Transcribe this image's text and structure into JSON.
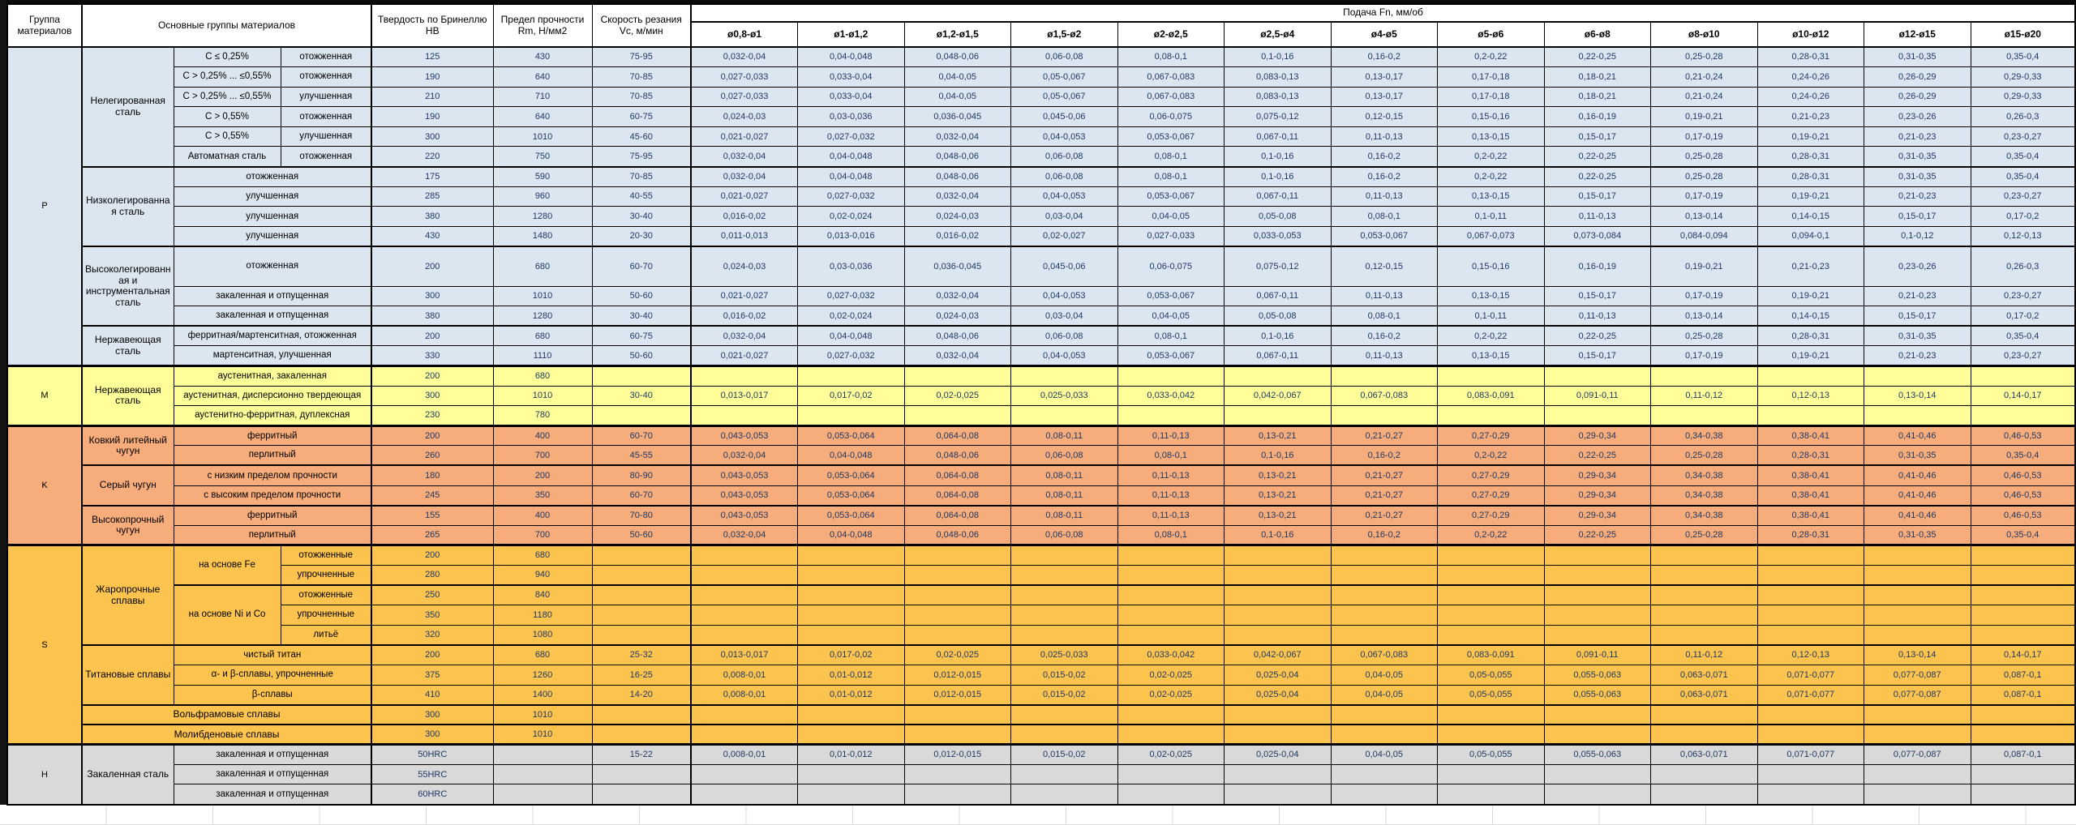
{
  "header": {
    "col_group": "Группа материалов",
    "col_materials": "Основные группы материалов",
    "col_hardness": "Твердость по Бринеллю HB",
    "col_strength": "Предел прочности Rm, Н/мм2",
    "col_speed": "Скорость резания Vc, м/мин",
    "feed_title": "Подача Fn, мм/об",
    "diameters": [
      "ø0,8-ø1",
      "ø1-ø1,2",
      "ø1,2-ø1,5",
      "ø1,5-ø2",
      "ø2-ø2,5",
      "ø2,5-ø4",
      "ø4-ø5",
      "ø5-ø6",
      "ø6-ø8",
      "ø8-ø10",
      "ø10-ø12",
      "ø12-ø15",
      "ø15-ø20"
    ]
  },
  "colors": {
    "p": "#DCE6F1",
    "m": "#FFFF99",
    "k": "#F6AC7B",
    "s": "#FCC44F",
    "h": "#D9D9D9",
    "numcol": "#1F3864"
  },
  "feed_sets": {
    "A": [
      "0,032-0,04",
      "0,04-0,048",
      "0,048-0,06",
      "0,06-0,08",
      "0,08-0,1",
      "0,1-0,16",
      "0,16-0,2",
      "0,2-0,22",
      "0,22-0,25",
      "0,25-0,28",
      "0,28-0,31",
      "0,31-0,35",
      "0,35-0,4"
    ],
    "B": [
      "0,027-0,033",
      "0,033-0,04",
      "0,04-0,05",
      "0,05-0,067",
      "0,067-0,083",
      "0,083-0,13",
      "0,13-0,17",
      "0,17-0,18",
      "0,18-0,21",
      "0,21-0,24",
      "0,24-0,26",
      "0,26-0,29",
      "0,29-0,33"
    ],
    "C": [
      "0,024-0,03",
      "0,03-0,036",
      "0,036-0,045",
      "0,045-0,06",
      "0,06-0,075",
      "0,075-0,12",
      "0,12-0,15",
      "0,15-0,16",
      "0,16-0,19",
      "0,19-0,21",
      "0,21-0,23",
      "0,23-0,26",
      "0,26-0,3"
    ],
    "D": [
      "0,021-0,027",
      "0,027-0,032",
      "0,032-0,04",
      "0,04-0,053",
      "0,053-0,067",
      "0,067-0,11",
      "0,11-0,13",
      "0,13-0,15",
      "0,15-0,17",
      "0,17-0,19",
      "0,19-0,21",
      "0,21-0,23",
      "0,23-0,27"
    ],
    "E": [
      "0,016-0,02",
      "0,02-0,024",
      "0,024-0,03",
      "0,03-0,04",
      "0,04-0,05",
      "0,05-0,08",
      "0,08-0,1",
      "0,1-0,11",
      "0,11-0,13",
      "0,13-0,14",
      "0,14-0,15",
      "0,15-0,17",
      "0,17-0,2"
    ],
    "F": [
      "0,011-0,013",
      "0,013-0,016",
      "0,016-0,02",
      "0,02-0,027",
      "0,027-0,033",
      "0,033-0,053",
      "0,053-0,067",
      "0,067-0,073",
      "0,073-0,084",
      "0,084-0,094",
      "0,094-0,1",
      "0,1-0,12",
      "0,12-0,13"
    ],
    "G": [
      "0,013-0,017",
      "0,017-0,02",
      "0,02-0,025",
      "0,025-0,033",
      "0,033-0,042",
      "0,042-0,067",
      "0,067-0,083",
      "0,083-0,091",
      "0,091-0,11",
      "0,11-0,12",
      "0,12-0,13",
      "0,13-0,14",
      "0,14-0,17"
    ],
    "H": [
      "0,043-0,053",
      "0,053-0,064",
      "0,064-0,08",
      "0,08-0,11",
      "0,11-0,13",
      "0,13-0,21",
      "0,21-0,27",
      "0,27-0,29",
      "0,29-0,34",
      "0,34-0,38",
      "0,38-0,41",
      "0,41-0,46",
      "0,46-0,53"
    ],
    "I": [
      "0,008-0,01",
      "0,01-0,012",
      "0,012-0,015",
      "0,015-0,02",
      "0,02-0,025",
      "0,025-0,04",
      "0,04-0,05",
      "0,05-0,055",
      "0,055-0,063",
      "0,063-0,071",
      "0,071-0,077",
      "0,077-0,087",
      "0,087-0,1"
    ]
  },
  "rows": [
    {
      "cls": "p",
      "group": [
        "P",
        15
      ],
      "fam": [
        "Нелегированная сталь",
        6
      ],
      "sub": [
        "C ≤ 0,25%",
        1
      ],
      "cond": "отожженная",
      "hb": "125",
      "rm": "430",
      "vc": "75-95",
      "feeds": "A"
    },
    {
      "sub": [
        "C > 0,25% ... ≤0,55%",
        1
      ],
      "cond": "отожженная",
      "hb": "190",
      "rm": "640",
      "vc": "70-85",
      "feeds": "B"
    },
    {
      "sub": [
        "C > 0,25% ... ≤0,55%",
        1
      ],
      "cond": "улучшенная",
      "hb": "210",
      "rm": "710",
      "vc": "70-85",
      "feeds": "B"
    },
    {
      "sub": [
        "C > 0,55%",
        1
      ],
      "cond": "отожженная",
      "hb": "190",
      "rm": "640",
      "vc": "60-75",
      "feeds": "C"
    },
    {
      "sub": [
        "C > 0,55%",
        1
      ],
      "cond": "улучшенная",
      "hb": "300",
      "rm": "1010",
      "vc": "45-60",
      "feeds": "D"
    },
    {
      "sub": [
        "Автоматная сталь",
        1
      ],
      "cond": "отожженная",
      "hb": "220",
      "rm": "750",
      "vc": "75-95",
      "feeds": "A"
    },
    {
      "bt": 2,
      "fam": [
        "Низколегированная сталь",
        4
      ],
      "sub": [
        "отожженная",
        2
      ],
      "hb": "175",
      "rm": "590",
      "vc": "70-85",
      "feeds": "A"
    },
    {
      "sub": [
        "улучшенная",
        2
      ],
      "hb": "285",
      "rm": "960",
      "vc": "40-55",
      "feeds": "D"
    },
    {
      "sub": [
        "улучшенная",
        2
      ],
      "hb": "380",
      "rm": "1280",
      "vc": "30-40",
      "feeds": "E"
    },
    {
      "sub": [
        "улучшенная",
        2
      ],
      "hb": "430",
      "rm": "1480",
      "vc": "20-30",
      "feeds": "F"
    },
    {
      "bt": 2,
      "tall": true,
      "fam": [
        "Высоколегированная и инструментальная сталь",
        3
      ],
      "sub": [
        "отожженная",
        2
      ],
      "hb": "200",
      "rm": "680",
      "vc": "60-70",
      "feeds": "C"
    },
    {
      "sub": [
        "закаленная и отпущенная",
        2
      ],
      "hb": "300",
      "rm": "1010",
      "vc": "50-60",
      "feeds": "D"
    },
    {
      "sub": [
        "закаленная и отпущенная",
        2
      ],
      "hb": "380",
      "rm": "1280",
      "vc": "30-40",
      "feeds": "E"
    },
    {
      "bt": 2,
      "fam": [
        "Нержавеющая сталь",
        2
      ],
      "sub": [
        "ферритная/мартенситная, отожженная",
        2
      ],
      "hb": "200",
      "rm": "680",
      "vc": "60-75",
      "feeds": "A"
    },
    {
      "sub": [
        "мартенситная, улучшенная",
        2
      ],
      "hb": "330",
      "rm": "1110",
      "vc": "50-60",
      "feeds": "D"
    },
    {
      "cls": "m",
      "bt": 3,
      "group": [
        "M",
        3
      ],
      "fam": [
        "Нержавеющая сталь",
        3
      ],
      "sub": [
        "аустенитная, закаленная",
        2
      ],
      "hb": "200",
      "rm": "680",
      "vc": "",
      "feeds": ""
    },
    {
      "sub": [
        "аустенитная, дисперсионно твердеющая",
        2
      ],
      "hb": "300",
      "rm": "1010",
      "vc": "30-40",
      "feeds": "G"
    },
    {
      "sub": [
        "аустенитно-ферритная, дуплексная",
        2
      ],
      "hb": "230",
      "rm": "780",
      "vc": "",
      "feeds": ""
    },
    {
      "cls": "k",
      "bt": 3,
      "group": [
        "K",
        6
      ],
      "fam": [
        "Ковкий литейный чугун",
        2
      ],
      "sub": [
        "ферритный",
        2
      ],
      "hb": "200",
      "rm": "400",
      "vc": "60-70",
      "feeds": "H"
    },
    {
      "sub": [
        "перлитный",
        2
      ],
      "hb": "260",
      "rm": "700",
      "vc": "45-55",
      "feeds": "A"
    },
    {
      "bt": 2,
      "fam": [
        "Серый чугун",
        2
      ],
      "sub": [
        "с низким пределом прочности",
        2
      ],
      "hb": "180",
      "rm": "200",
      "vc": "80-90",
      "feeds": "H"
    },
    {
      "sub": [
        "с высоким пределом прочности",
        2
      ],
      "hb": "245",
      "rm": "350",
      "vc": "60-70",
      "feeds": "H"
    },
    {
      "bt": 2,
      "fam": [
        "Высокопрочный чугун",
        2
      ],
      "sub": [
        "ферритный",
        2
      ],
      "hb": "155",
      "rm": "400",
      "vc": "70-80",
      "feeds": "H"
    },
    {
      "sub": [
        "перлитный",
        2
      ],
      "hb": "265",
      "rm": "700",
      "vc": "50-60",
      "feeds": "A"
    },
    {
      "cls": "s",
      "bt": 3,
      "group": [
        "S",
        10
      ],
      "fam": [
        "Жаропрочные сплавы",
        5
      ],
      "subR": [
        "на основе Fe",
        2
      ],
      "cond": "отожженные",
      "hb": "200",
      "rm": "680",
      "vc": "",
      "feeds": ""
    },
    {
      "cond": "упрочненные",
      "hb": "280",
      "rm": "940",
      "vc": "",
      "feeds": ""
    },
    {
      "bt": 2,
      "subR": [
        "на основе Ni и Co",
        3
      ],
      "cond": "отожженные",
      "hb": "250",
      "rm": "840",
      "vc": "",
      "feeds": ""
    },
    {
      "cond": "упрочненные",
      "hb": "350",
      "rm": "1180",
      "vc": "",
      "feeds": ""
    },
    {
      "cond": "литьё",
      "hb": "320",
      "rm": "1080",
      "vc": "",
      "feeds": ""
    },
    {
      "bt": 2,
      "fam": [
        "Титановые сплавы",
        3
      ],
      "sub": [
        "чистый титан",
        2
      ],
      "hb": "200",
      "rm": "680",
      "vc": "25-32",
      "feeds": "G"
    },
    {
      "sub": [
        "α- и β-сплавы, упрочненные",
        2
      ],
      "hb": "375",
      "rm": "1260",
      "vc": "16-25",
      "feeds": "I"
    },
    {
      "sub": [
        "β-сплавы",
        2
      ],
      "hb": "410",
      "rm": "1400",
      "vc": "14-20",
      "feeds": "I"
    },
    {
      "bt": 2,
      "span3": "Вольфрамовые сплавы",
      "hb": "300",
      "rm": "1010",
      "vc": "",
      "feeds": ""
    },
    {
      "bt": 2,
      "span3": "Молибденовые сплавы",
      "hb": "300",
      "rm": "1010",
      "vc": "",
      "feeds": ""
    },
    {
      "cls": "h",
      "bt": 3,
      "group": [
        "H",
        3
      ],
      "fam": [
        "Закаленная сталь",
        3
      ],
      "sub": [
        "закаленная и отпущенная",
        2
      ],
      "hb": "50HRC",
      "rm": "",
      "vc": "15-22",
      "feeds": "I"
    },
    {
      "sub": [
        "закаленная и отпущенная",
        2
      ],
      "hb": "55HRC",
      "rm": "",
      "vc": "",
      "feeds": ""
    },
    {
      "sub": [
        "закаленная и отпущенная",
        2
      ],
      "hb": "60HRC",
      "rm": "",
      "vc": "",
      "feeds": ""
    }
  ]
}
